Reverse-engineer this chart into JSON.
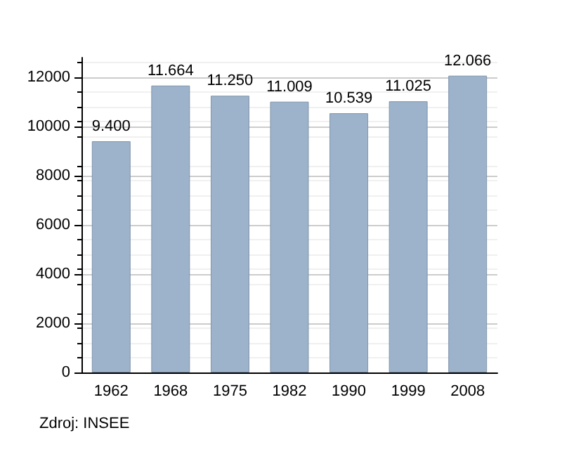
{
  "chart_data": {
    "type": "bar",
    "categories": [
      "1962",
      "1968",
      "1975",
      "1982",
      "1990",
      "1999",
      "2008"
    ],
    "values": [
      9400,
      11664,
      11250,
      11009,
      10539,
      11025,
      12066
    ],
    "value_labels": [
      "9.400",
      "11.664",
      "11.250",
      "11.009",
      "10.539",
      "11.025",
      "12.066"
    ],
    "color": "#9cb3cb",
    "ylim": [
      0,
      12800
    ],
    "yticks": [
      0,
      2000,
      4000,
      6000,
      8000,
      10000,
      12000
    ],
    "grid": "y",
    "annotations": [
      "Zdroj: INSEE"
    ]
  }
}
